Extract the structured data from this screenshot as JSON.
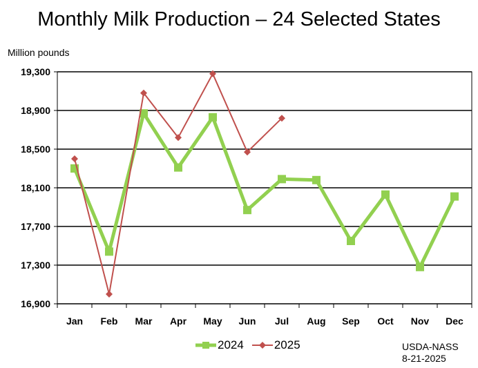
{
  "chart_data": {
    "type": "line",
    "title": "Monthly Milk Production – 24 Selected States",
    "ylabel": "Million pounds",
    "xlabel": "",
    "categories": [
      "Jan",
      "Feb",
      "Mar",
      "Apr",
      "May",
      "Jun",
      "Jul",
      "Aug",
      "Sep",
      "Oct",
      "Nov",
      "Dec"
    ],
    "ylim": [
      16900,
      19300
    ],
    "yticks": [
      "16,900",
      "17,300",
      "17,700",
      "18,100",
      "18,500",
      "18,900",
      "19,300"
    ],
    "grid": true,
    "legend": "bottom",
    "series": [
      {
        "name": "2024",
        "color": "#92d050",
        "marker": "square",
        "values": [
          18300,
          17440,
          18870,
          18310,
          18830,
          17870,
          18190,
          18180,
          17550,
          18030,
          17280,
          18010
        ]
      },
      {
        "name": "2025",
        "color": "#c0504d",
        "marker": "diamond",
        "values": [
          18400,
          17000,
          19080,
          18620,
          19280,
          18470,
          18820,
          null,
          null,
          null,
          null,
          null
        ]
      }
    ]
  },
  "source": {
    "line1": "USDA-NASS",
    "line2": "8-21-2025"
  }
}
